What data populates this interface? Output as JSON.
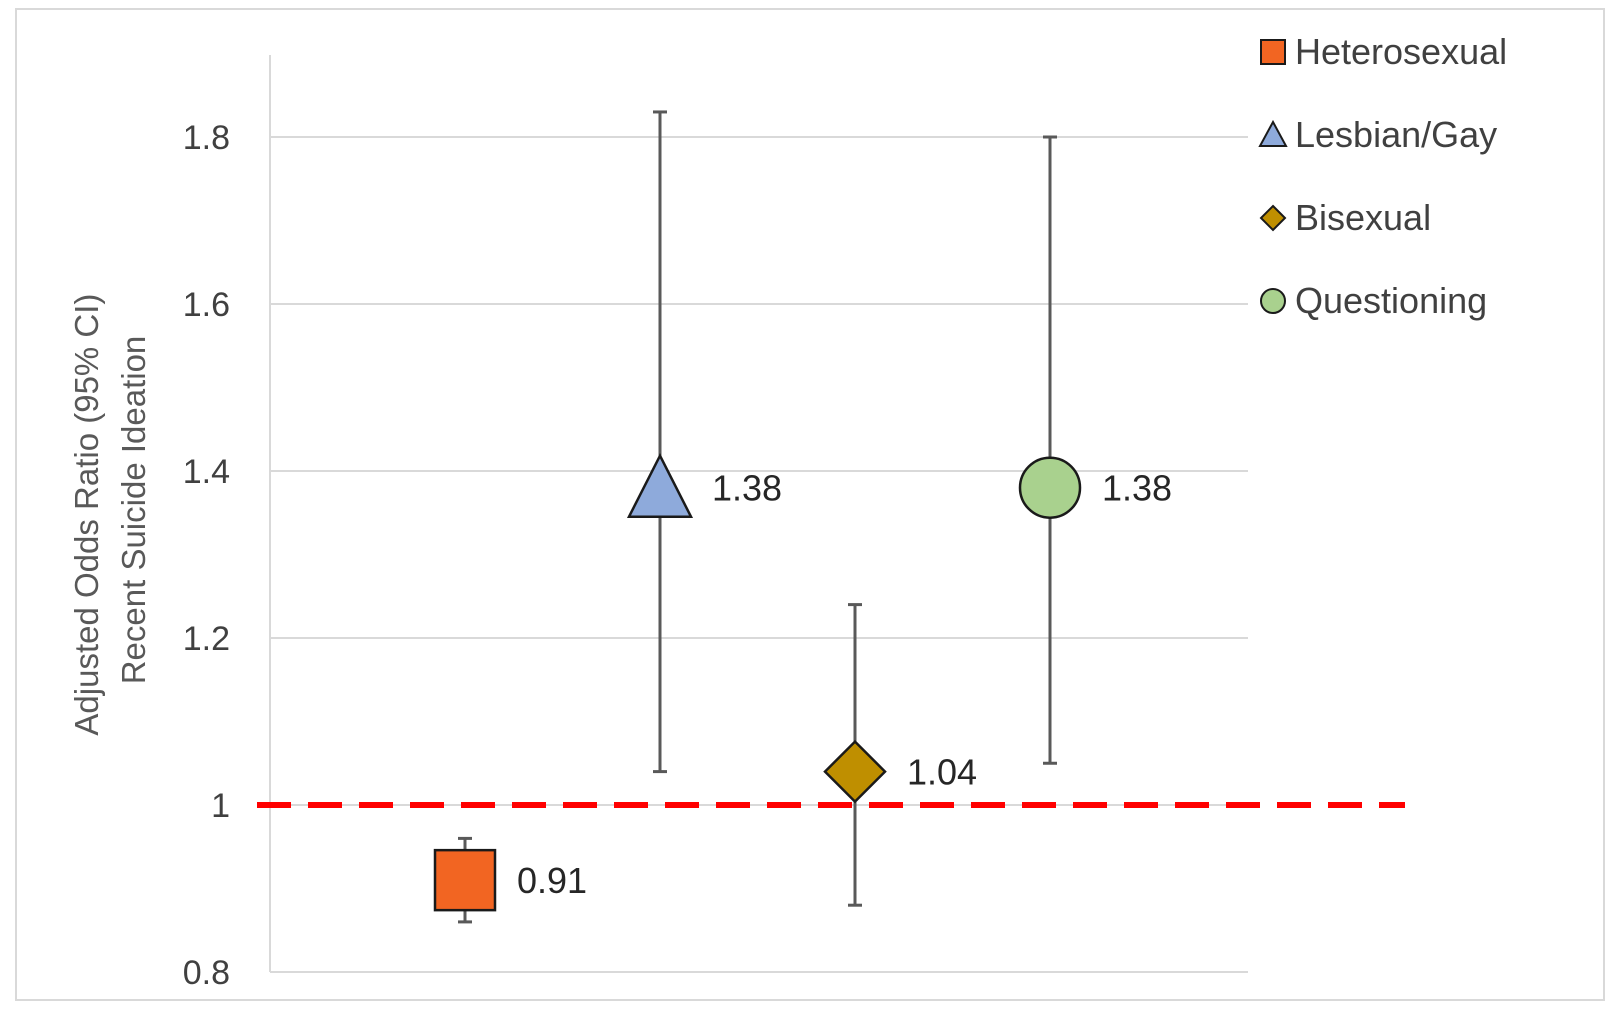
{
  "chart_data": {
    "type": "scatter",
    "title": "",
    "ylabel_lines": [
      "Adjusted Odds Ratio (95% CI)",
      "Recent Suicide Ideation"
    ],
    "ylim": [
      0.8,
      1.9
    ],
    "yticks": [
      {
        "value": 0.8,
        "label": "0.8"
      },
      {
        "value": 1.0,
        "label": "1"
      },
      {
        "value": 1.2,
        "label": "1.2"
      },
      {
        "value": 1.4,
        "label": "1.4"
      },
      {
        "value": 1.6,
        "label": "1.6"
      },
      {
        "value": 1.8,
        "label": "1.8"
      }
    ],
    "grid": true,
    "reference_line": {
      "value": 1.0,
      "color": "#ff0000",
      "style": "dashed"
    },
    "legend_placement": "right",
    "series": [
      {
        "name": "Heterosexual",
        "marker": "square",
        "color": "#f26522",
        "value": 0.91,
        "ci": [
          0.86,
          0.96
        ],
        "label": "0.91"
      },
      {
        "name": "Lesbian/Gay",
        "marker": "triangle",
        "color": "#8eaadb",
        "value": 1.38,
        "ci": [
          1.04,
          1.83
        ],
        "label": "1.38"
      },
      {
        "name": "Bisexual",
        "marker": "diamond",
        "color": "#bf8f00",
        "value": 1.04,
        "ci": [
          0.88,
          1.24
        ],
        "label": "1.04"
      },
      {
        "name": "Questioning",
        "marker": "circle",
        "color": "#a9d18e",
        "value": 1.38,
        "ci": [
          1.05,
          1.8
        ],
        "label": "1.38"
      }
    ]
  }
}
